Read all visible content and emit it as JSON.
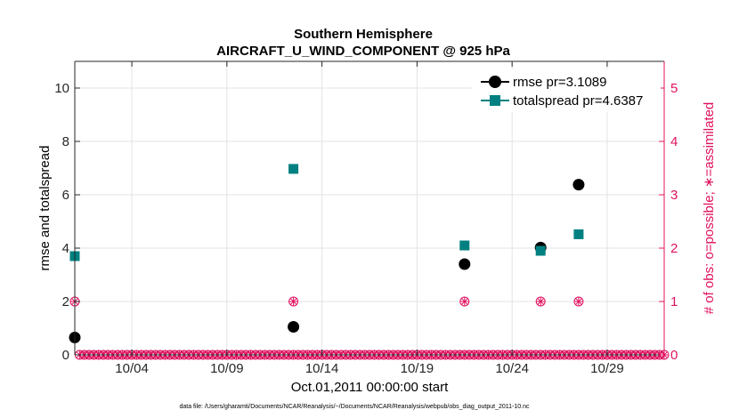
{
  "chart_data": {
    "type": "scatter",
    "title_line1": "Southern Hemisphere",
    "title_line2": "AIRCRAFT_U_WIND_COMPONENT @ 925 hPa",
    "xlabel": "Oct.01,2011 00:00:00 start",
    "ylabel": "rmse and totalspread",
    "ylabel_right": "# of obs: o=possible; ∗=assimilated",
    "footnote": "data file: /Users/gharamti/Documents/NCAR/Reanalysis/~/Documents/NCAR/Reanalysis/webpub/obs_diag_output_2011-10.nc",
    "xlim": [
      0.5,
      31.5
    ],
    "ylim": [
      0,
      11
    ],
    "ylim_right": [
      0,
      5.5
    ],
    "x_ticks": [
      3.5,
      8.5,
      13.5,
      18.5,
      23.5,
      28.5
    ],
    "x_tick_labels": [
      "10/04",
      "10/09",
      "10/14",
      "10/19",
      "10/24",
      "10/29"
    ],
    "y_ticks": [
      0,
      2,
      4,
      6,
      8,
      10
    ],
    "y_tick_labels": [
      "0",
      "2",
      "4",
      "6",
      "8",
      "10"
    ],
    "y_right_ticks": [
      0,
      1,
      2,
      3,
      4,
      5
    ],
    "y_right_tick_labels": [
      "0",
      "1",
      "2",
      "3",
      "4",
      "5"
    ],
    "grid": true,
    "legend_position": "top-right",
    "series": [
      {
        "name": "rmse pr=3.1089",
        "color": "#000000",
        "marker": "circle",
        "x": [
          0.5,
          12,
          21,
          25,
          27
        ],
        "y": [
          0.65,
          1.05,
          3.4,
          4.02,
          6.38
        ]
      },
      {
        "name": "totalspread pr=4.6387",
        "color": "#008080",
        "marker": "square",
        "x": [
          0.5,
          12,
          21,
          25,
          27
        ],
        "y": [
          3.7,
          6.97,
          4.1,
          3.9,
          4.52
        ]
      }
    ],
    "obs_series": {
      "color": "#e0115f",
      "possible_marker": "circle-open",
      "assimilated_marker": "asterisk",
      "nonzero_x": [
        0.5,
        12,
        21,
        25,
        27
      ],
      "nonzero_count": [
        1,
        1,
        1,
        1,
        1
      ],
      "zero_x_start": 0.75,
      "zero_x_end": 31.5,
      "zero_x_step": 0.25
    }
  }
}
